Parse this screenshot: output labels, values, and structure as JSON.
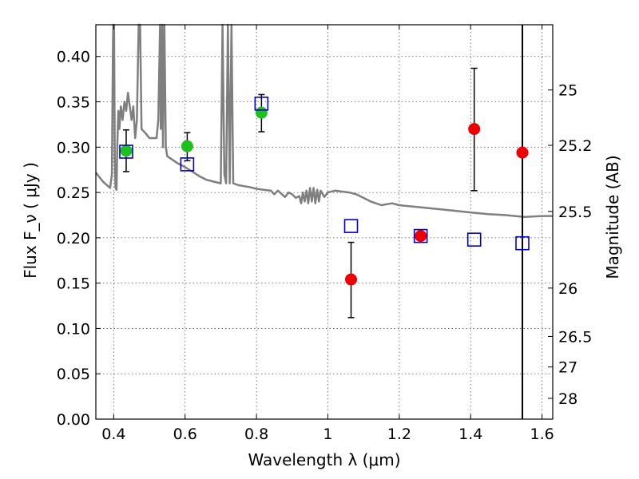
{
  "chart_data": {
    "type": "scatter",
    "xlabel": "Wavelength λ (μm)",
    "ylabel": "Flux F_ν ( μJy )",
    "y2label": "Magnitude (AB)",
    "xlim": [
      0.35,
      1.63
    ],
    "ylim": [
      0.0,
      0.435
    ],
    "grid": true,
    "x_ticks": [
      0.4,
      0.6,
      0.8,
      1.0,
      1.2,
      1.4,
      1.6
    ],
    "x_tick_labels": [
      "0.4",
      "0.6",
      "0.8",
      "1",
      "1.2",
      "1.4",
      "1.6"
    ],
    "y_ticks": [
      0.0,
      0.05,
      0.1,
      0.15,
      0.2,
      0.25,
      0.3,
      0.35,
      0.4
    ],
    "y_tick_labels": [
      "0.00",
      "0.05",
      "0.10",
      "0.15",
      "0.20",
      "0.25",
      "0.30",
      "0.35",
      "0.40"
    ],
    "mag_ticks": [
      25,
      25.2,
      25.5,
      26,
      26.5,
      27,
      28
    ],
    "mag_tick_labels": [
      "25",
      "25.2",
      "25.5",
      "26",
      "26.5",
      "27",
      "28"
    ],
    "vertical_line_x": 1.545,
    "colors": {
      "green": "#1fbf1f",
      "red": "#ee0000",
      "blue": "#0000cc",
      "spectrum": "#7f7f7f",
      "grid": "#555555"
    },
    "series": [
      {
        "marker": "circle",
        "color": "green",
        "points": [
          {
            "x": 0.435,
            "y": 0.296,
            "yerr": [
              0.273,
              0.319
            ]
          },
          {
            "x": 0.606,
            "y": 0.301,
            "yerr": [
              0.285,
              0.316
            ]
          },
          {
            "x": 0.814,
            "y": 0.338,
            "yerr": [
              0.317,
              0.358
            ]
          }
        ]
      },
      {
        "marker": "circle",
        "color": "red",
        "points": [
          {
            "x": 1.065,
            "y": 0.154,
            "yerr": [
              0.112,
              0.195
            ]
          },
          {
            "x": 1.26,
            "y": 0.202
          },
          {
            "x": 1.41,
            "y": 0.32,
            "yerr": [
              0.252,
              0.387
            ]
          },
          {
            "x": 1.545,
            "y": 0.294
          }
        ]
      },
      {
        "marker": "open-square",
        "color": "blue",
        "points": [
          {
            "x": 0.435,
            "y": 0.295
          },
          {
            "x": 0.606,
            "y": 0.281
          },
          {
            "x": 0.814,
            "y": 0.348
          },
          {
            "x": 1.065,
            "y": 0.213
          },
          {
            "x": 1.26,
            "y": 0.202
          },
          {
            "x": 1.41,
            "y": 0.198
          },
          {
            "x": 1.545,
            "y": 0.194
          }
        ]
      },
      {
        "type": "line",
        "color": "spectrum",
        "points": [
          [
            0.35,
            0.272
          ],
          [
            0.37,
            0.262
          ],
          [
            0.39,
            0.255
          ],
          [
            0.395,
            0.27
          ],
          [
            0.398,
            0.42
          ],
          [
            0.399,
            0.435
          ],
          [
            0.401,
            0.435
          ],
          [
            0.403,
            0.29
          ],
          [
            0.405,
            0.255
          ],
          [
            0.408,
            0.253
          ],
          [
            0.41,
            0.3
          ],
          [
            0.413,
            0.34
          ],
          [
            0.416,
            0.32
          ],
          [
            0.42,
            0.345
          ],
          [
            0.425,
            0.33
          ],
          [
            0.43,
            0.35
          ],
          [
            0.435,
            0.34
          ],
          [
            0.44,
            0.36
          ],
          [
            0.445,
            0.345
          ],
          [
            0.45,
            0.33
          ],
          [
            0.455,
            0.345
          ],
          [
            0.46,
            0.31
          ],
          [
            0.465,
            0.33
          ],
          [
            0.47,
            0.435
          ],
          [
            0.474,
            0.435
          ],
          [
            0.478,
            0.32
          ],
          [
            0.49,
            0.315
          ],
          [
            0.5,
            0.31
          ],
          [
            0.52,
            0.31
          ],
          [
            0.525,
            0.33
          ],
          [
            0.53,
            0.435
          ],
          [
            0.532,
            0.32
          ],
          [
            0.536,
            0.435
          ],
          [
            0.538,
            0.3
          ],
          [
            0.542,
            0.435
          ],
          [
            0.546,
            0.3
          ],
          [
            0.55,
            0.29
          ],
          [
            0.58,
            0.282
          ],
          [
            0.6,
            0.278
          ],
          [
            0.62,
            0.273
          ],
          [
            0.64,
            0.268
          ],
          [
            0.66,
            0.264
          ],
          [
            0.68,
            0.262
          ],
          [
            0.7,
            0.26
          ],
          [
            0.705,
            0.435
          ],
          [
            0.71,
            0.27
          ],
          [
            0.715,
            0.26
          ],
          [
            0.72,
            0.435
          ],
          [
            0.725,
            0.26
          ],
          [
            0.73,
            0.435
          ],
          [
            0.735,
            0.26
          ],
          [
            0.75,
            0.258
          ],
          [
            0.78,
            0.256
          ],
          [
            0.8,
            0.254
          ],
          [
            0.82,
            0.253
          ],
          [
            0.84,
            0.252
          ],
          [
            0.85,
            0.248
          ],
          [
            0.86,
            0.252
          ],
          [
            0.88,
            0.245
          ],
          [
            0.89,
            0.25
          ],
          [
            0.9,
            0.248
          ],
          [
            0.91,
            0.244
          ],
          [
            0.92,
            0.246
          ],
          [
            0.925,
            0.238
          ],
          [
            0.93,
            0.25
          ],
          [
            0.935,
            0.24
          ],
          [
            0.94,
            0.252
          ],
          [
            0.945,
            0.238
          ],
          [
            0.95,
            0.255
          ],
          [
            0.955,
            0.24
          ],
          [
            0.96,
            0.255
          ],
          [
            0.965,
            0.238
          ],
          [
            0.97,
            0.253
          ],
          [
            0.975,
            0.24
          ],
          [
            0.98,
            0.252
          ],
          [
            0.99,
            0.245
          ],
          [
            1.0,
            0.25
          ],
          [
            1.02,
            0.252
          ],
          [
            1.04,
            0.251
          ],
          [
            1.06,
            0.25
          ],
          [
            1.08,
            0.248
          ],
          [
            1.1,
            0.244
          ],
          [
            1.12,
            0.24
          ],
          [
            1.15,
            0.236
          ],
          [
            1.18,
            0.238
          ],
          [
            1.2,
            0.236
          ],
          [
            1.25,
            0.234
          ],
          [
            1.3,
            0.232
          ],
          [
            1.35,
            0.23
          ],
          [
            1.4,
            0.228
          ],
          [
            1.45,
            0.226
          ],
          [
            1.5,
            0.225
          ],
          [
            1.55,
            0.223
          ],
          [
            1.6,
            0.224
          ],
          [
            1.63,
            0.224
          ]
        ]
      }
    ]
  }
}
